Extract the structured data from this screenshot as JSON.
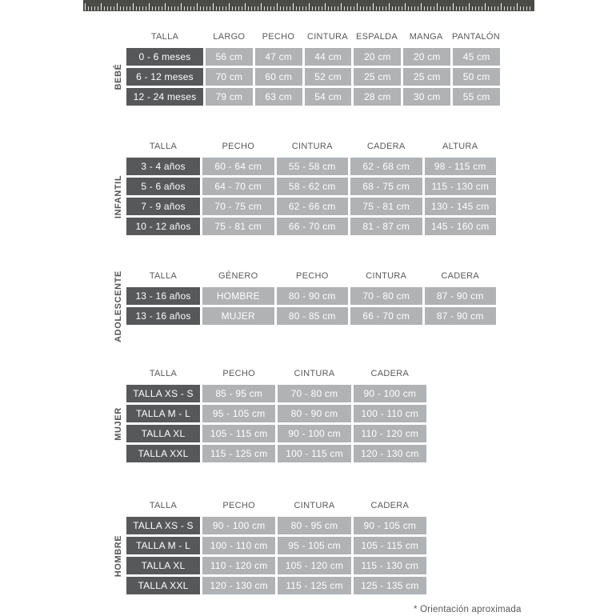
{
  "footnote": "* Orientación aproximada",
  "colors": {
    "dark_cell": "#57585a",
    "light_cell": "#b0b2b4",
    "header_text": "#58595b",
    "ruler": "#4a4a47",
    "cell_text": "#ffffff"
  },
  "icons": {
    "ruler": "measuring-tape-ruler"
  },
  "tables": [
    {
      "group": "BEBÉ",
      "headers": [
        "TALLA",
        "LARGO",
        "PECHO",
        "CINTURA",
        "ESPALDA",
        "MANGA",
        "PANTALÓN"
      ],
      "rows": [
        [
          "0 - 6 meses",
          "56 cm",
          "47 cm",
          "44 cm",
          "20 cm",
          "20 cm",
          "45 cm"
        ],
        [
          "6 - 12 meses",
          "70 cm",
          "60 cm",
          "52 cm",
          "25 cm",
          "25 cm",
          "50 cm"
        ],
        [
          "12 - 24 meses",
          "79 cm",
          "63 cm",
          "54 cm",
          "28 cm",
          "30 cm",
          "55 cm"
        ]
      ]
    },
    {
      "group": "INFANTIL",
      "headers": [
        "TALLA",
        "PECHO",
        "CINTURA",
        "CADERA",
        "ALTURA"
      ],
      "rows": [
        [
          "3 - 4 años",
          "60 - 64 cm",
          "55 - 58 cm",
          "62 - 68 cm",
          "98 - 115 cm"
        ],
        [
          "5 - 6 años",
          "64 - 70 cm",
          "58 - 62 cm",
          "68 - 75 cm",
          "115 - 130 cm"
        ],
        [
          "7 - 9 años",
          "70 - 75 cm",
          "62 - 66 cm",
          "75 - 81 cm",
          "130 - 145 cm"
        ],
        [
          "10 - 12 años",
          "75 - 81 cm",
          "66 - 70 cm",
          "81 - 87 cm",
          "145 - 160 cm"
        ]
      ]
    },
    {
      "group": "ADOLESCENTE",
      "headers": [
        "TALLA",
        "GÉNERO",
        "PECHO",
        "CINTURA",
        "CADERA"
      ],
      "rows": [
        [
          "13 - 16 años",
          "HOMBRE",
          "80 - 90 cm",
          "70 - 80 cm",
          "87 - 90 cm"
        ],
        [
          "13 - 16 años",
          "MUJER",
          "80 - 85 cm",
          "66 - 70 cm",
          "87 - 90 cm"
        ]
      ]
    },
    {
      "group": "MUJER",
      "headers": [
        "TALLA",
        "PECHO",
        "CINTURA",
        "CADERA"
      ],
      "rows": [
        [
          "TALLA XS - S",
          "85 - 95 cm",
          "70 - 80 cm",
          "90 - 100 cm"
        ],
        [
          "TALLA M - L",
          "95 - 105 cm",
          "80 - 90 cm",
          "100 - 110 cm"
        ],
        [
          "TALLA XL",
          "105 - 115 cm",
          "90 - 100 cm",
          "110 - 120 cm"
        ],
        [
          "TALLA XXL",
          "115 - 125 cm",
          "100 - 115 cm",
          "120 - 130 cm"
        ]
      ]
    },
    {
      "group": "HOMBRE",
      "headers": [
        "TALLA",
        "PECHO",
        "CINTURA",
        "CADERA"
      ],
      "rows": [
        [
          "TALLA XS - S",
          "90 - 100 cm",
          "80 - 95 cm",
          "90 - 105 cm"
        ],
        [
          "TALLA M - L",
          "100 - 110 cm",
          "95 - 105 cm",
          "105 - 115 cm"
        ],
        [
          "TALLA XL",
          "110 - 120 cm",
          "105 - 120 cm",
          "115 - 130 cm"
        ],
        [
          "TALLA XXL",
          "120 - 130 cm",
          "115 - 125 cm",
          "125 - 135 cm"
        ]
      ]
    }
  ]
}
